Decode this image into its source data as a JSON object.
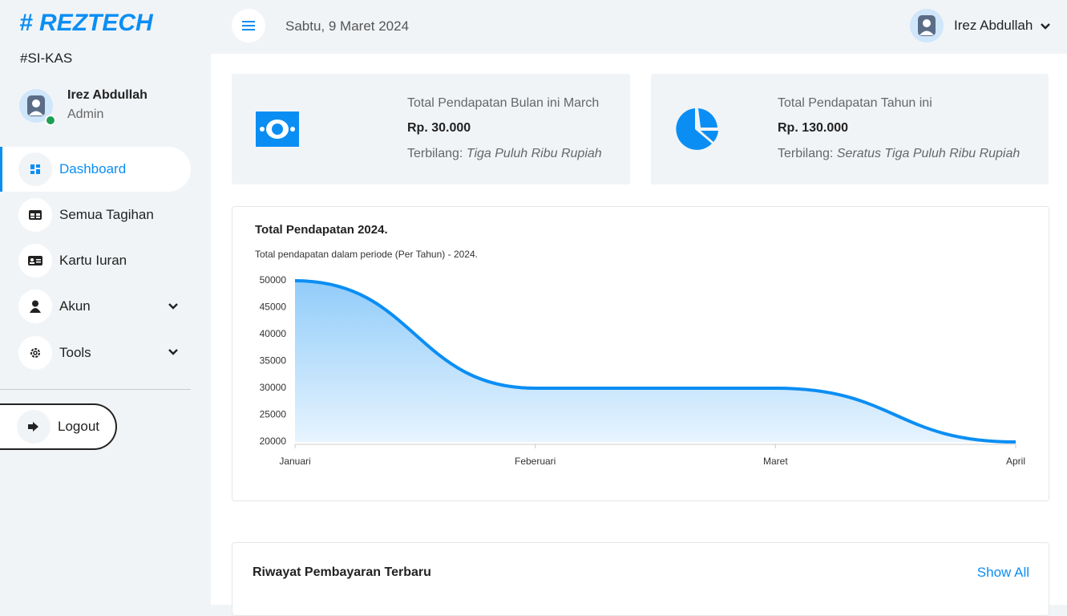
{
  "brand": {
    "logo": "# REZTECH",
    "app": "#SI-KAS"
  },
  "profile": {
    "name": "Irez Abdullah",
    "role": "Admin"
  },
  "menu": [
    "Dashboard",
    "Semua Tagihan",
    "Kartu Iuran",
    "Akun",
    "Tools"
  ],
  "logout": "Logout",
  "header": {
    "date": "Sabtu, 9 Maret 2024",
    "user": "Irez Abdullah"
  },
  "cards": [
    {
      "title": "Total Pendapatan Bulan ini March",
      "amount": "Rp. 30.000",
      "label": "Terbilang:",
      "words": "Tiga Puluh Ribu Rupiah"
    },
    {
      "title": "Total Pendapatan Tahun ini",
      "amount": "Rp. 130.000",
      "label": "Terbilang:",
      "words": "Seratus Tiga Puluh Ribu Rupiah"
    }
  ],
  "chart_data": {
    "type": "area",
    "title": "Total Pendapatan 2024.",
    "subtitle": "Total pendapatan dalam periode (Per Tahun) - 2024.",
    "categories": [
      "Januari",
      "Feberuari",
      "Maret",
      "April"
    ],
    "values": [
      50000,
      30000,
      30000,
      20000
    ],
    "color": "#0b8ef3",
    "ylim": [
      20000,
      50000
    ],
    "yticks": [
      20000,
      25000,
      30000,
      35000,
      40000,
      45000,
      50000
    ],
    "grid": false
  },
  "history": {
    "title": "Riwayat Pembayaran Terbaru",
    "link": "Show All"
  }
}
